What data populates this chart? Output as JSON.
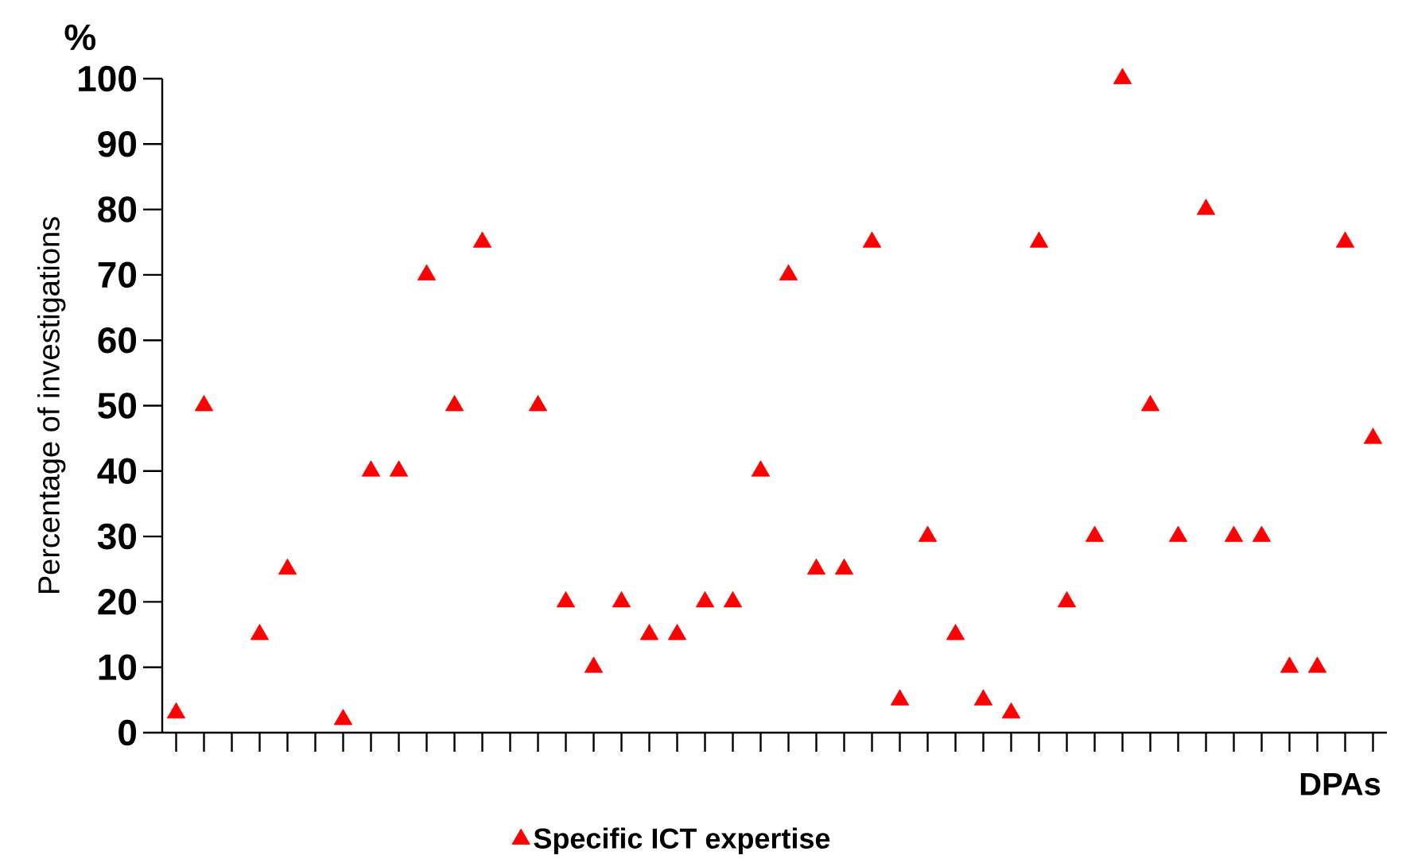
{
  "chart_data": {
    "type": "scatter",
    "xlabel": "DPAs",
    "ylabel": "Percentage of investigations",
    "annotations": [
      "%"
    ],
    "categories": [
      null,
      null,
      null,
      null,
      null,
      null,
      null,
      null,
      null,
      null,
      null,
      null,
      null,
      null,
      null,
      null,
      null,
      null,
      null,
      null,
      null,
      null,
      null,
      null,
      null,
      null,
      null,
      null,
      null,
      null,
      null,
      null,
      null,
      null,
      null,
      null,
      null,
      null,
      null,
      null,
      null,
      null,
      null,
      null
    ],
    "series": [
      {
        "name": "Specific ICT expertise",
        "color": "#ff0000",
        "values": [
          3,
          50,
          null,
          15,
          25,
          null,
          2,
          40,
          40,
          70,
          50,
          75,
          null,
          50,
          20,
          10,
          20,
          15,
          15,
          20,
          20,
          40,
          70,
          25,
          25,
          75,
          5,
          30,
          15,
          5,
          3,
          75,
          20,
          30,
          100,
          50,
          30,
          80,
          30,
          30,
          10,
          10,
          75,
          45
        ]
      }
    ],
    "ylim": [
      0,
      100
    ],
    "yticks": [
      0,
      10,
      20,
      30,
      40,
      50,
      60,
      70,
      80,
      90,
      100
    ],
    "marker": "triangle",
    "legend": "bottom"
  }
}
